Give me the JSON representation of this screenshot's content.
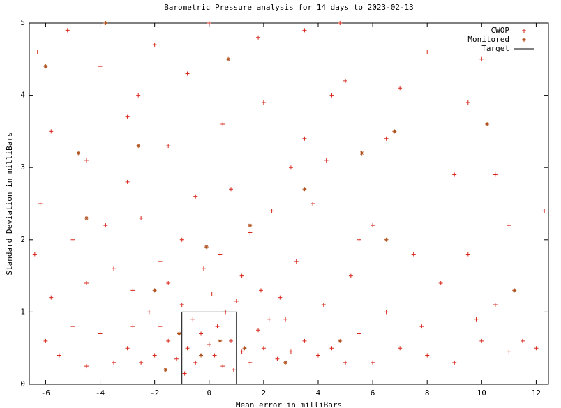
{
  "chart_data": {
    "type": "scatter",
    "title": "Barometric Pressure analysis for 14 days to 2023-02-13",
    "x_label": "Mean error in milliBars",
    "y_label": "Standard Deviation in milliBars",
    "xlim": [
      -6.6,
      12.45
    ],
    "ylim": [
      0,
      5
    ],
    "xticks": [
      -6,
      -4,
      -2,
      0,
      2,
      4,
      6,
      8,
      10,
      12
    ],
    "yticks": [
      0,
      1,
      2,
      3,
      4,
      5
    ],
    "grid": false,
    "legend": "top-right",
    "series": [
      {
        "name": "CWOP",
        "color": "#d8281c",
        "marker": "plus",
        "x": [
          -0.5,
          0.2,
          0.5,
          -0.8,
          0.8,
          -1.2,
          1.2,
          -1.5,
          1.5,
          -0.3,
          0.3,
          0,
          -2,
          2,
          -2.5,
          2.5,
          -1.8,
          1.8,
          -0.6,
          0.6,
          -1,
          1,
          -2.2,
          2.2,
          -3,
          3,
          -3.5,
          3.5,
          -4,
          4,
          -4.5,
          4.5,
          -5,
          5,
          -5.5,
          5.5,
          -6,
          6,
          7,
          8,
          9,
          10,
          11,
          12,
          -1.5,
          1.2,
          -2.8,
          2.6,
          -0.2,
          0.4,
          -3.5,
          3.2,
          -4.5,
          4.2,
          -1,
          1.5,
          -2.5,
          2.3,
          -5,
          5.5,
          -0.5,
          0.8,
          -3,
          3,
          -4.5,
          6,
          7.5,
          8.5,
          9.5,
          10.5,
          -6.2,
          -5.8,
          -4,
          -2,
          0,
          -3,
          -1.5,
          0.5,
          2,
          3.5,
          4.5,
          5,
          6.5,
          8,
          9.5,
          10,
          9,
          10.5,
          11,
          12.3,
          7,
          -6.3,
          -5.2,
          1.8,
          3.5,
          4.8,
          -0.8,
          -2.6,
          -3.8,
          -1.8,
          1.9,
          0.1,
          -0.9,
          0.9,
          -2.8,
          2.8,
          6.5,
          7.8,
          11.5,
          9.8,
          -5.8,
          -6.4,
          5.2,
          3.8,
          4.3
        ],
        "y": [
          0.3,
          0.4,
          0.25,
          0.5,
          0.6,
          0.35,
          0.45,
          0.6,
          0.3,
          0.7,
          0.8,
          0.55,
          0.4,
          0.5,
          0.3,
          0.35,
          0.8,
          0.75,
          0.9,
          1.0,
          1.1,
          1.15,
          1.0,
          0.9,
          0.5,
          0.45,
          0.3,
          0.6,
          0.7,
          0.4,
          0.25,
          0.5,
          0.8,
          0.3,
          0.4,
          0.7,
          0.6,
          0.3,
          0.5,
          0.4,
          0.3,
          0.6,
          0.45,
          0.5,
          1.4,
          1.5,
          1.3,
          1.2,
          1.6,
          1.8,
          1.6,
          1.7,
          1.4,
          1.1,
          2.0,
          2.1,
          2.3,
          2.4,
          2.0,
          2.0,
          2.6,
          2.7,
          2.8,
          3.0,
          3.1,
          2.2,
          1.8,
          1.4,
          1.8,
          1.1,
          2.5,
          3.5,
          4.4,
          4.7,
          5.0,
          3.7,
          3.3,
          3.6,
          3.9,
          3.4,
          4.0,
          4.2,
          3.4,
          4.6,
          3.9,
          4.5,
          2.9,
          2.9,
          2.2,
          2.4,
          4.1,
          4.6,
          4.9,
          4.8,
          4.9,
          5.0,
          4.3,
          4.0,
          2.2,
          1.7,
          1.3,
          1.25,
          0.15,
          0.2,
          0.8,
          0.9,
          1.0,
          0.8,
          0.6,
          0.9,
          1.2,
          1.8,
          1.5,
          2.5,
          3.1
        ]
      },
      {
        "name": "Monitored",
        "color": "#b0501c",
        "marker": "star",
        "x": [
          -0.3,
          0.4,
          -1.1,
          1.3,
          -2,
          1.5,
          -4.5,
          -4.8,
          -6,
          0.7,
          -3.8,
          5.6,
          6.8,
          10.2,
          11.2,
          3.5,
          -0.1,
          2.8,
          -1.6,
          4.8,
          6.5,
          -2.6
        ],
        "y": [
          0.4,
          0.6,
          0.7,
          0.5,
          1.3,
          2.2,
          2.3,
          3.2,
          4.4,
          4.5,
          5.0,
          3.2,
          3.5,
          3.6,
          1.3,
          2.7,
          1.9,
          0.3,
          0.2,
          0.6,
          2.0,
          3.3
        ]
      },
      {
        "name": "Target",
        "color": "#000000",
        "marker": "line",
        "x": [
          -1,
          -1,
          1,
          1
        ],
        "y": [
          0,
          1,
          1,
          0
        ]
      }
    ]
  }
}
